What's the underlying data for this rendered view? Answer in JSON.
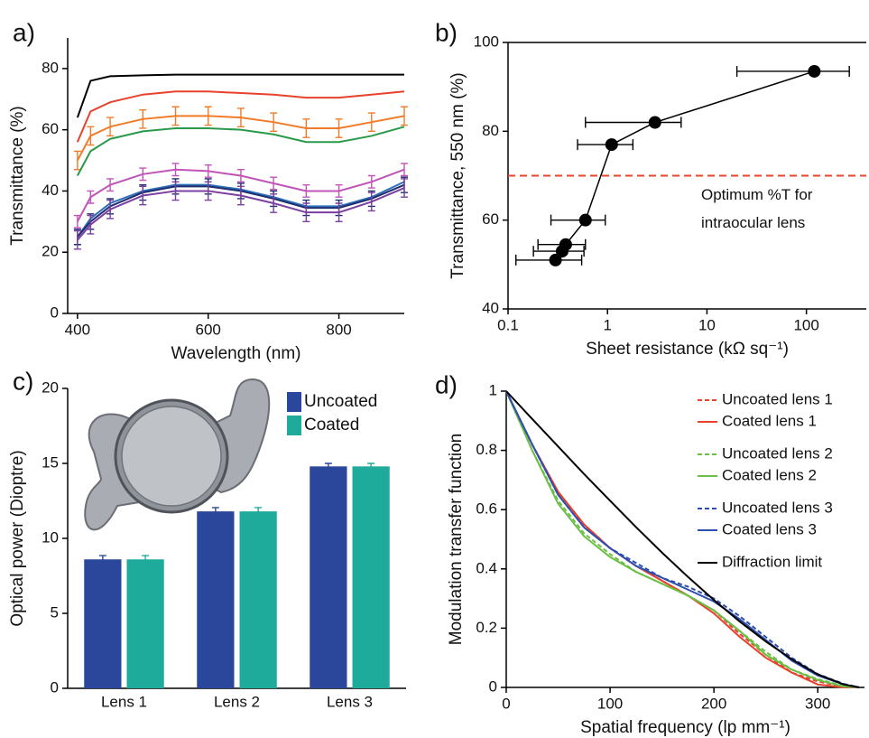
{
  "chart_data": [
    {
      "type": "line",
      "panel_label": "a)",
      "xlabel": "Wavelength (nm)",
      "ylabel": "Transmittance (%)",
      "xlim": [
        385,
        900
      ],
      "ylim": [
        0,
        90
      ],
      "xticks": [
        400,
        600,
        800
      ],
      "yticks": [
        0,
        20,
        40,
        60,
        80
      ],
      "x": [
        400,
        420,
        450,
        500,
        550,
        600,
        650,
        700,
        750,
        800,
        850,
        900
      ],
      "series": [
        {
          "color": "#000000",
          "values": [
            64,
            76,
            77.5,
            77.8,
            78,
            78,
            78,
            78,
            78,
            78,
            78,
            78
          ]
        },
        {
          "color": "#e8412c",
          "values": [
            56,
            66,
            69,
            71.5,
            72.5,
            72.5,
            72,
            71.5,
            70.5,
            70.5,
            71.5,
            72.5
          ]
        },
        {
          "color": "#f07c2a",
          "values": [
            50,
            58,
            61,
            63.5,
            64.5,
            64.5,
            64,
            62.5,
            60.5,
            60.5,
            62.5,
            64.5
          ],
          "errors": [
            3,
            3,
            3,
            3,
            3,
            3,
            3,
            3,
            3,
            3,
            3,
            3
          ]
        },
        {
          "color": "#2a9a4a",
          "values": [
            45,
            53,
            57,
            59.5,
            60.5,
            60.5,
            60,
            58.5,
            56,
            56,
            58,
            61
          ]
        },
        {
          "color": "#c054b8",
          "values": [
            30,
            38,
            42,
            45.5,
            47,
            46.5,
            45,
            42.5,
            40,
            40,
            43,
            47
          ],
          "errors": [
            2,
            2,
            2,
            2,
            2,
            2,
            2,
            2,
            2,
            2,
            2,
            2
          ]
        },
        {
          "color": "#2c6fb8",
          "values": [
            25,
            31,
            36,
            40,
            42,
            42,
            40.5,
            38,
            35,
            35,
            38,
            43
          ]
        },
        {
          "color": "#1f2d6e",
          "values": [
            25,
            30,
            35,
            39.5,
            41.5,
            41.5,
            40,
            37.5,
            34.5,
            34.5,
            37.5,
            42
          ],
          "errors": [
            2.5,
            2.5,
            2.5,
            2.5,
            2.5,
            2.5,
            2.5,
            2.5,
            2.5,
            2.5,
            2.5,
            2.5
          ]
        },
        {
          "color": "#7b3fa0",
          "values": [
            24,
            29,
            34,
            38.5,
            40,
            40,
            38.5,
            36,
            33,
            33,
            36.5,
            41
          ],
          "errors": [
            3,
            3,
            3,
            3,
            3,
            3,
            3,
            3,
            3,
            3,
            3,
            3
          ]
        }
      ]
    },
    {
      "type": "scatter",
      "panel_label": "b)",
      "xlabel": "Sheet resistance (kΩ sq⁻¹)",
      "ylabel": "Transmittance, 550 nm (%)",
      "xscale": "log",
      "xlim": [
        0.1,
        400
      ],
      "ylim": [
        40,
        100
      ],
      "xticks": [
        0.1,
        1,
        10,
        100
      ],
      "yticks": [
        40,
        60,
        80,
        100
      ],
      "color": "#000000",
      "x": [
        120,
        3,
        1.1,
        0.6,
        0.38,
        0.35,
        0.3
      ],
      "values": [
        93.5,
        82,
        77,
        60,
        54.5,
        53,
        51
      ],
      "x_low": [
        20,
        0.6,
        0.5,
        0.27,
        0.2,
        0.18,
        0.12
      ],
      "x_high": [
        270,
        5.5,
        1.8,
        0.95,
        0.6,
        0.58,
        0.55
      ],
      "reference_line": {
        "value": 70,
        "color": "#e8452c",
        "label_lines": [
          "Optimum %T for",
          "intraocular lens"
        ]
      }
    },
    {
      "type": "bar",
      "panel_label": "c)",
      "ylabel": "Optical power (Dioptre)",
      "ylim": [
        0,
        20
      ],
      "yticks": [
        0,
        5,
        10,
        15,
        20
      ],
      "legend": "upper right",
      "categories": [
        "Lens 1",
        "Lens 2",
        "Lens 3"
      ],
      "series": [
        {
          "name": "Uncoated",
          "color": "#2b479b",
          "values": [
            8.6,
            11.8,
            14.8
          ],
          "errors": [
            0.25,
            0.25,
            0.2
          ]
        },
        {
          "name": "Coated",
          "color": "#1fab9c",
          "values": [
            8.6,
            11.8,
            14.8
          ],
          "errors": [
            0.25,
            0.25,
            0.2
          ]
        }
      ]
    },
    {
      "type": "line",
      "panel_label": "d)",
      "xlabel": "Spatial frequency (lp mm⁻¹)",
      "ylabel": "Modulation transfer function",
      "xlim": [
        0,
        345
      ],
      "ylim": [
        0,
        1
      ],
      "xticks": [
        0,
        100,
        200,
        300
      ],
      "yticks": [
        0,
        0.2,
        0.4,
        0.6,
        0.8,
        1
      ],
      "legend": "upper right",
      "x": [
        0,
        25,
        50,
        75,
        100,
        125,
        150,
        175,
        200,
        225,
        250,
        275,
        300,
        325,
        340
      ],
      "series": [
        {
          "name": "Uncoated lens 1",
          "color": "#e8412c",
          "dash": true,
          "values": [
            1,
            0.82,
            0.66,
            0.55,
            0.47,
            0.41,
            0.36,
            0.31,
            0.26,
            0.18,
            0.11,
            0.05,
            0.02,
            0.003,
            0
          ]
        },
        {
          "name": "Coated lens 1",
          "color": "#e8412c",
          "values": [
            1,
            0.82,
            0.66,
            0.55,
            0.47,
            0.41,
            0.36,
            0.31,
            0.25,
            0.17,
            0.1,
            0.05,
            0.01,
            0,
            0
          ]
        },
        {
          "name": "Uncoated lens 2",
          "color": "#6cbf45",
          "dash": true,
          "values": [
            1,
            0.8,
            0.63,
            0.52,
            0.45,
            0.39,
            0.35,
            0.31,
            0.26,
            0.19,
            0.12,
            0.06,
            0.028,
            0.005,
            0
          ]
        },
        {
          "name": "Coated lens 2",
          "color": "#6cbf45",
          "values": [
            1,
            0.8,
            0.62,
            0.51,
            0.44,
            0.39,
            0.35,
            0.31,
            0.26,
            0.19,
            0.11,
            0.06,
            0.025,
            0.003,
            0
          ]
        },
        {
          "name": "Uncoated lens 3",
          "color": "#2c4fb0",
          "dash": true,
          "values": [
            1,
            0.82,
            0.65,
            0.54,
            0.47,
            0.42,
            0.37,
            0.34,
            0.3,
            0.24,
            0.17,
            0.1,
            0.045,
            0.012,
            0
          ]
        },
        {
          "name": "Coated lens 3",
          "color": "#2c4fb0",
          "values": [
            1,
            0.82,
            0.65,
            0.54,
            0.47,
            0.41,
            0.37,
            0.33,
            0.29,
            0.23,
            0.16,
            0.09,
            0.04,
            0.01,
            0
          ]
        },
        {
          "name": "Diffraction limit",
          "color": "#000000",
          "values": [
            1,
            0.906,
            0.813,
            0.72,
            0.63,
            0.541,
            0.455,
            0.373,
            0.295,
            0.222,
            0.155,
            0.095,
            0.044,
            0.01,
            0
          ]
        }
      ]
    }
  ]
}
